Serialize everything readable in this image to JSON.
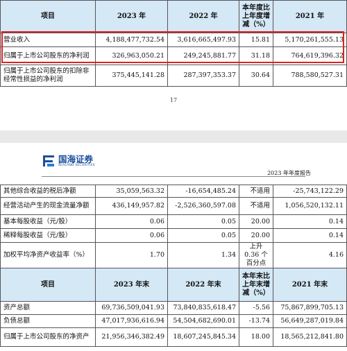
{
  "table1": {
    "headers": [
      "项目",
      "2023 年",
      "2022 年",
      "本年度比上年度增减（%）",
      "2021 年"
    ],
    "rows": [
      {
        "label": "营业收入",
        "v2023": "4,188,477,732.54",
        "v2022": "3,616,665,497.93",
        "change": "15.81",
        "v2021": "5,170,261,555.13"
      },
      {
        "label": "归属于上市公司股东的净利润",
        "v2023": "326,963,050.21",
        "v2022": "249,245,881.77",
        "change": "31.18",
        "v2021": "764,619,396.32"
      },
      {
        "label": "归属于上市公司股东的扣除非经常性损益的净利润",
        "v2023": "375,445,141.28",
        "v2022": "287,397,353.37",
        "change": "30.64",
        "v2021": "788,580,527.31"
      }
    ]
  },
  "page_number": "17",
  "logo": {
    "cn": "国海证券",
    "en": "SEALAND SECURITIES"
  },
  "report_title": "2023 年年度报告",
  "table2": {
    "rows": [
      {
        "label": "其他综合收益的税后净额",
        "v2023": "35,059,563.32",
        "v2022": "-16,654,485.24",
        "change": "不适用",
        "v2021": "-25,743,122.29"
      },
      {
        "label": "经营活动产生的现金流量净额",
        "v2023": "436,149,957.82",
        "v2022": "-2,526,360,597.08",
        "change": "不适用",
        "v2021": "1,056,520,132.11"
      },
      {
        "label": "基本每股收益（元/股）",
        "v2023": "0.06",
        "v2022": "0.05",
        "change": "20.00",
        "v2021": "0.14"
      },
      {
        "label": "稀释每股收益（元/股）",
        "v2023": "0.06",
        "v2022": "0.05",
        "change": "20.00",
        "v2021": "0.14"
      },
      {
        "label": "加权平均净资产收益率（%）",
        "v2023": "1.70",
        "v2022": "1.34",
        "change": "上升 0.36 个百分点",
        "v2021": "4.16"
      }
    ],
    "headers2": [
      "项目",
      "2023 年末",
      "2022 年末",
      "本年末比上年末增减（%）",
      "2021 年末"
    ],
    "rows2": [
      {
        "label": "资产总额",
        "v2023": "69,736,509,041.93",
        "v2022": "73,840,835,618.47",
        "change": "-5.56",
        "v2021": "75,867,899,705.13"
      },
      {
        "label": "负债总额",
        "v2023": "47,017,936,616.94",
        "v2022": "54,504,682,690.01",
        "change": "-13.74",
        "v2021": "56,649,287,019.84"
      },
      {
        "label": "归属于上市公司股东的净资产",
        "v2023": "21,956,346,382.49",
        "v2022": "18,607,245,845.34",
        "change": "18.00",
        "v2021": "18,565,212,841.80"
      }
    ]
  },
  "colors": {
    "header_bg": "#d4e8f6",
    "highlight": "#e02020",
    "logo": "#1a4f9c"
  }
}
